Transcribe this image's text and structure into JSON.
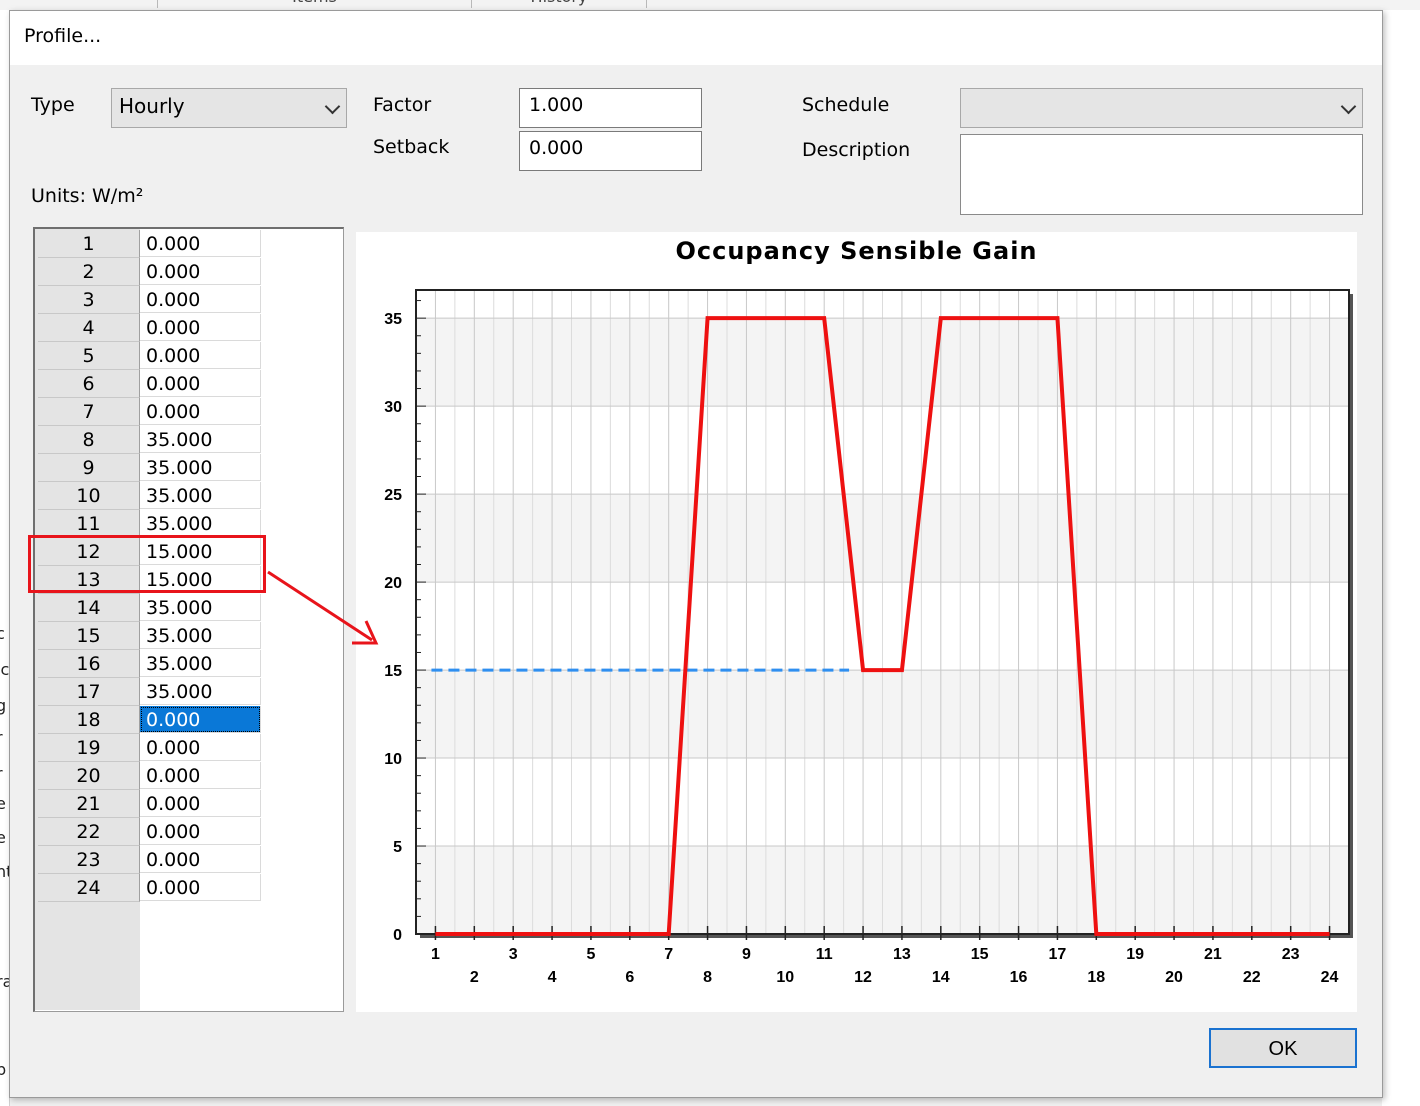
{
  "background": {
    "tab1": "Items",
    "tab2": "History",
    "left_glyphs": [
      "c",
      "ic",
      "g",
      "r",
      "r",
      "e",
      "e",
      "nt",
      "ra",
      "p"
    ]
  },
  "dialog": {
    "title": "Profile..."
  },
  "form": {
    "type_label": "Type",
    "type_value": "Hourly",
    "factor_label": "Factor",
    "factor_value": "1.000",
    "setback_label": "Setback",
    "setback_value": "0.000",
    "schedule_label": "Schedule",
    "schedule_value": "",
    "description_label": "Description",
    "description_value": "",
    "units_label": "Units: W/m²"
  },
  "table": {
    "rows": [
      {
        "hour": "1",
        "value": "0.000"
      },
      {
        "hour": "2",
        "value": "0.000"
      },
      {
        "hour": "3",
        "value": "0.000"
      },
      {
        "hour": "4",
        "value": "0.000"
      },
      {
        "hour": "5",
        "value": "0.000"
      },
      {
        "hour": "6",
        "value": "0.000"
      },
      {
        "hour": "7",
        "value": "0.000"
      },
      {
        "hour": "8",
        "value": "35.000"
      },
      {
        "hour": "9",
        "value": "35.000"
      },
      {
        "hour": "10",
        "value": "35.000"
      },
      {
        "hour": "11",
        "value": "35.000"
      },
      {
        "hour": "12",
        "value": "15.000"
      },
      {
        "hour": "13",
        "value": "15.000"
      },
      {
        "hour": "14",
        "value": "35.000"
      },
      {
        "hour": "15",
        "value": "35.000"
      },
      {
        "hour": "16",
        "value": "35.000"
      },
      {
        "hour": "17",
        "value": "35.000"
      },
      {
        "hour": "18",
        "value": "0.000"
      },
      {
        "hour": "19",
        "value": "0.000"
      },
      {
        "hour": "20",
        "value": "0.000"
      },
      {
        "hour": "21",
        "value": "0.000"
      },
      {
        "hour": "22",
        "value": "0.000"
      },
      {
        "hour": "23",
        "value": "0.000"
      },
      {
        "hour": "24",
        "value": "0.000"
      }
    ],
    "selected_row": 18
  },
  "chart_data": {
    "type": "line",
    "title": "Occupancy Sensible Gain",
    "xlabel": "",
    "ylabel": "",
    "x": [
      1,
      2,
      3,
      4,
      5,
      6,
      7,
      8,
      9,
      10,
      11,
      12,
      13,
      14,
      15,
      16,
      17,
      18,
      19,
      20,
      21,
      22,
      23,
      24
    ],
    "series": [
      {
        "values": [
          0,
          0,
          0,
          0,
          0,
          0,
          0,
          35,
          35,
          35,
          35,
          15,
          15,
          35,
          35,
          35,
          35,
          0,
          0,
          0,
          0,
          0,
          0,
          0
        ],
        "color": "#ee1111"
      }
    ],
    "reference_line": {
      "y": 15,
      "x_start": 1,
      "x_end": 12,
      "style": "dashed",
      "color": "#2f8ff0"
    },
    "xlim": [
      0.5,
      24.5
    ],
    "ylim": [
      0,
      36.6
    ],
    "yticks": [
      0,
      5,
      10,
      15,
      20,
      25,
      30,
      35
    ],
    "xticks_top_row": [
      1,
      3,
      5,
      7,
      9,
      11,
      13,
      15,
      17,
      19,
      21,
      23
    ],
    "xticks_bottom_row": [
      2,
      4,
      6,
      8,
      10,
      12,
      14,
      16,
      18,
      20,
      22,
      24
    ],
    "grid": true,
    "alternating_bands": true
  },
  "annotation": {
    "highlight_rows": [
      12,
      13
    ],
    "arrow_color": "#e8141b"
  },
  "buttons": {
    "ok_label": "OK"
  }
}
